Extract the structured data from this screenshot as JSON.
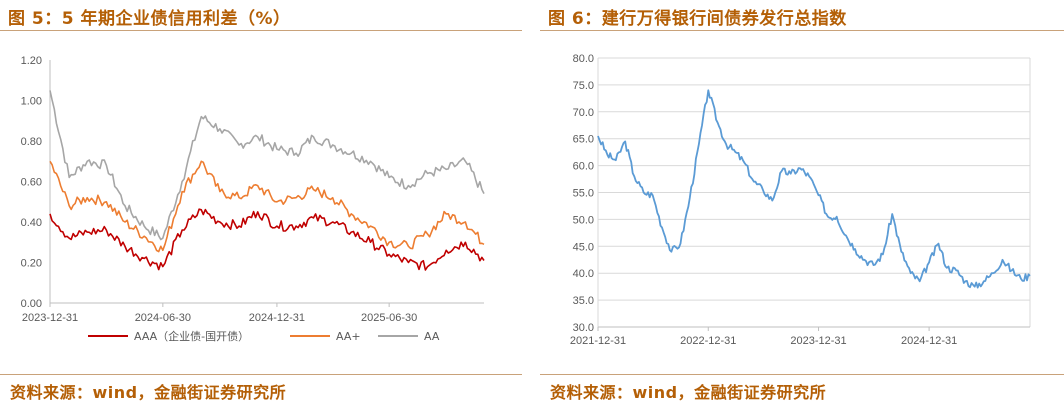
{
  "left": {
    "fig_title": "图 5：5 年期企业债信用利差（%）",
    "source": "资料来源：wind，金融街证券研究所",
    "chart_data": {
      "type": "line",
      "title": "5 年期企业债信用利差（%）",
      "ylim": [
        0,
        1.2
      ],
      "yticks": [
        "0.00",
        "0.20",
        "0.40",
        "0.60",
        "0.80",
        "1.00",
        "1.20"
      ],
      "xlim": [
        "2023-12-31",
        "2025-11-30"
      ],
      "xticks": [
        "2023-12-31",
        "2024-06-30",
        "2024-12-31",
        "2025-06-30"
      ],
      "grid": false,
      "legend": "bottom",
      "x": [
        "2023-12-31",
        "2024-01-31",
        "2024-02-29",
        "2024-03-31",
        "2024-04-30",
        "2024-05-31",
        "2024-06-30",
        "2024-07-31",
        "2024-08-31",
        "2024-09-30",
        "2024-10-31",
        "2024-11-30",
        "2024-12-31",
        "2025-01-31",
        "2025-02-28",
        "2025-03-31",
        "2025-04-30",
        "2025-05-31",
        "2025-06-30",
        "2025-07-31",
        "2025-08-31",
        "2025-09-30",
        "2025-10-31",
        "2025-11-30"
      ],
      "series": [
        {
          "name": "AAA（企业债-国开债）",
          "color": "#c00000",
          "values": [
            0.44,
            0.32,
            0.35,
            0.36,
            0.28,
            0.22,
            0.18,
            0.36,
            0.46,
            0.4,
            0.38,
            0.45,
            0.38,
            0.38,
            0.42,
            0.4,
            0.35,
            0.3,
            0.24,
            0.2,
            0.18,
            0.26,
            0.3,
            0.21
          ]
        },
        {
          "name": "AA+",
          "color": "#ed7d31",
          "values": [
            0.7,
            0.48,
            0.52,
            0.5,
            0.4,
            0.33,
            0.26,
            0.55,
            0.7,
            0.55,
            0.52,
            0.58,
            0.5,
            0.52,
            0.56,
            0.52,
            0.44,
            0.38,
            0.3,
            0.28,
            0.34,
            0.44,
            0.4,
            0.29
          ]
        },
        {
          "name": "AA",
          "color": "#a6a6a6",
          "values": [
            1.05,
            0.62,
            0.7,
            0.68,
            0.48,
            0.38,
            0.32,
            0.6,
            0.92,
            0.86,
            0.78,
            0.82,
            0.76,
            0.74,
            0.82,
            0.78,
            0.74,
            0.7,
            0.62,
            0.58,
            0.64,
            0.66,
            0.7,
            0.54
          ]
        }
      ]
    }
  },
  "right": {
    "fig_title": "图 6：建行万得银行间债券发行总指数",
    "source": "资料来源：wind，金融街证券研究所",
    "chart_data": {
      "type": "line",
      "title": "建行万得银行间债券发行总指数",
      "ylim": [
        30,
        80
      ],
      "yticks": [
        "30.0",
        "35.0",
        "40.0",
        "45.0",
        "50.0",
        "55.0",
        "60.0",
        "65.0",
        "70.0",
        "75.0",
        "80.0"
      ],
      "xlim": [
        "2021-12-31",
        "2025-11-30"
      ],
      "xticks": [
        "2021-12-31",
        "2022-12-31",
        "2023-12-31",
        "2024-12-31"
      ],
      "grid": true,
      "series": [
        {
          "name": "",
          "color": "#5b9bd5",
          "values": [
            [
              "2021-12-31",
              65.5
            ],
            [
              "2022-01-31",
              62.0
            ],
            [
              "2022-02-28",
              61.0
            ],
            [
              "2022-03-31",
              64.5
            ],
            [
              "2022-04-30",
              58.0
            ],
            [
              "2022-05-31",
              55.0
            ],
            [
              "2022-06-30",
              54.5
            ],
            [
              "2022-07-31",
              48.5
            ],
            [
              "2022-08-31",
              44.0
            ],
            [
              "2022-09-30",
              45.5
            ],
            [
              "2022-10-31",
              54.0
            ],
            [
              "2022-11-30",
              64.0
            ],
            [
              "2022-12-31",
              74.0
            ],
            [
              "2023-01-31",
              68.0
            ],
            [
              "2023-02-28",
              64.0
            ],
            [
              "2023-03-31",
              62.5
            ],
            [
              "2023-04-30",
              60.5
            ],
            [
              "2023-05-31",
              57.0
            ],
            [
              "2023-06-30",
              55.5
            ],
            [
              "2023-07-31",
              53.5
            ],
            [
              "2023-08-31",
              59.0
            ],
            [
              "2023-09-30",
              58.5
            ],
            [
              "2023-10-31",
              59.5
            ],
            [
              "2023-11-30",
              58.0
            ],
            [
              "2023-12-31",
              54.5
            ],
            [
              "2024-01-31",
              50.5
            ],
            [
              "2024-02-29",
              50.5
            ],
            [
              "2024-03-31",
              47.0
            ],
            [
              "2024-04-30",
              44.5
            ],
            [
              "2024-05-31",
              42.5
            ],
            [
              "2024-06-30",
              41.5
            ],
            [
              "2024-07-31",
              43.5
            ],
            [
              "2024-08-31",
              51.0
            ],
            [
              "2024-09-30",
              44.0
            ],
            [
              "2024-10-31",
              40.0
            ],
            [
              "2024-11-30",
              38.5
            ],
            [
              "2024-12-31",
              42.0
            ],
            [
              "2025-01-31",
              45.5
            ],
            [
              "2025-02-28",
              41.0
            ],
            [
              "2025-03-31",
              40.5
            ],
            [
              "2025-04-30",
              38.5
            ],
            [
              "2025-05-31",
              37.5
            ],
            [
              "2025-06-30",
              38.5
            ],
            [
              "2025-07-31",
              40.0
            ],
            [
              "2025-08-31",
              42.5
            ],
            [
              "2025-09-30",
              40.5
            ],
            [
              "2025-10-31",
              39.0
            ],
            [
              "2025-11-30",
              39.5
            ]
          ]
        }
      ]
    }
  }
}
